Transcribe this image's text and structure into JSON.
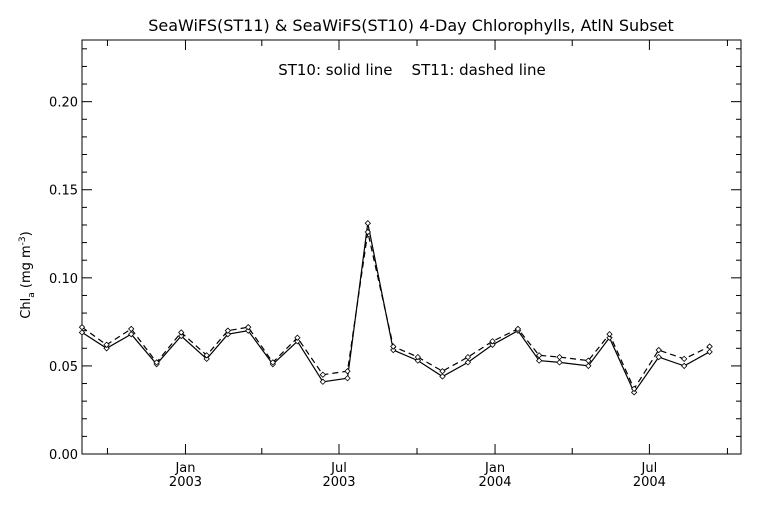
{
  "chart_data": {
    "type": "line",
    "title": "SeaWiFS(ST11) & SeaWiFS(ST10) 4-Day Chlorophylls, AtlN Subset",
    "annotation": "ST10: solid line    ST11: dashed line",
    "ylabel": "Chl_a (mg m^-3)",
    "ylabel_parts": {
      "base": "Chl",
      "sub": "a",
      "unit_open": " (mg m",
      "sup": "-3",
      "unit_close": ")"
    },
    "xlabel": "",
    "ylim": [
      0.0,
      0.235
    ],
    "yticks": [
      "0.00",
      "0.05",
      "0.10",
      "0.15",
      "0.20"
    ],
    "xlim": [
      "2002-09-01",
      "2004-10-17"
    ],
    "xtick_labels": [
      {
        "date": "2003-01-01",
        "line1": "Jan",
        "line2": "2003"
      },
      {
        "date": "2003-07-01",
        "line1": "Jul",
        "line2": "2003"
      },
      {
        "date": "2004-01-01",
        "line1": "Jan",
        "line2": "2004"
      },
      {
        "date": "2004-07-01",
        "line1": "Jul",
        "line2": "2004"
      }
    ],
    "x": [
      "2002-09-01",
      "2002-09-30",
      "2002-10-29",
      "2002-11-28",
      "2002-12-27",
      "2003-01-26",
      "2003-02-20",
      "2003-03-16",
      "2003-04-14",
      "2003-05-13",
      "2003-06-12",
      "2003-07-11",
      "2003-08-04",
      "2003-09-03",
      "2003-10-02",
      "2003-10-31",
      "2003-11-30",
      "2003-12-29",
      "2004-01-28",
      "2004-02-22",
      "2004-03-17",
      "2004-04-20",
      "2004-05-15",
      "2004-06-13",
      "2004-07-12",
      "2004-08-11",
      "2004-09-10"
    ],
    "series": [
      {
        "name": "ST10",
        "style": "solid",
        "values": [
          0.069,
          0.06,
          0.068,
          0.051,
          0.067,
          0.054,
          0.068,
          0.07,
          0.051,
          0.064,
          0.041,
          0.043,
          0.131,
          0.059,
          0.053,
          0.044,
          0.052,
          0.062,
          0.07,
          0.053,
          0.052,
          0.05,
          0.066,
          0.035,
          0.055,
          0.05,
          0.058
        ]
      },
      {
        "name": "ST11",
        "style": "dashed",
        "values": [
          0.072,
          0.062,
          0.071,
          0.052,
          0.069,
          0.056,
          0.07,
          0.072,
          0.052,
          0.066,
          0.045,
          0.047,
          0.126,
          0.061,
          0.055,
          0.047,
          0.055,
          0.064,
          0.071,
          0.056,
          0.055,
          0.053,
          0.068,
          0.037,
          0.059,
          0.054,
          0.061
        ]
      }
    ],
    "grid": false,
    "legend": "none"
  }
}
